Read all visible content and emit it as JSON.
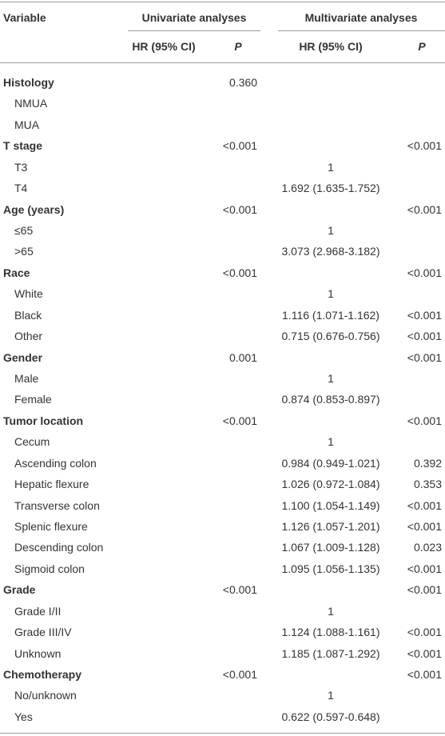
{
  "table": {
    "header": {
      "variable": "Variable",
      "groups": [
        "Univariate analyses",
        "Multivariate analyses"
      ],
      "columns": [
        "HR (95% CI)",
        "P",
        "HR (95% CI)",
        "P"
      ]
    },
    "sections": [
      {
        "row": [
          "Histology",
          null,
          "0.360",
          null,
          null
        ],
        "items": [
          [
            "NMUA",
            null,
            null,
            null,
            null
          ],
          [
            "MUA",
            null,
            null,
            null,
            null
          ]
        ]
      },
      {
        "row": [
          "T stage",
          null,
          "<0.001",
          null,
          "<0.001"
        ],
        "items": [
          [
            "T3",
            null,
            null,
            "1",
            null
          ],
          [
            "T4",
            null,
            null,
            "1.692 (1.635-1.752)",
            null
          ]
        ]
      },
      {
        "row": [
          "Age (years)",
          null,
          "<0.001",
          null,
          "<0.001"
        ],
        "items": [
          [
            "≤65",
            null,
            null,
            "1",
            null
          ],
          [
            ">65",
            null,
            null,
            "3.073 (2.968-3.182)",
            null
          ]
        ]
      },
      {
        "row": [
          "Race",
          null,
          "<0.001",
          null,
          "<0.001"
        ],
        "items": [
          [
            "White",
            null,
            null,
            "1",
            null
          ],
          [
            "Black",
            null,
            null,
            "1.116 (1.071-1.162)",
            "<0.001"
          ],
          [
            "Other",
            null,
            null,
            "0.715 (0.676-0.756)",
            "<0.001"
          ]
        ]
      },
      {
        "row": [
          "Gender",
          null,
          "0.001",
          null,
          "<0.001"
        ],
        "items": [
          [
            "Male",
            null,
            null,
            "1",
            null
          ],
          [
            "Female",
            null,
            null,
            "0.874 (0.853-0.897)",
            null
          ]
        ]
      },
      {
        "row": [
          "Tumor location",
          null,
          "<0.001",
          null,
          "<0.001"
        ],
        "items": [
          [
            "Cecum",
            null,
            null,
            "1",
            null
          ],
          [
            "Ascending colon",
            null,
            null,
            "0.984 (0.949-1.021)",
            "0.392"
          ],
          [
            "Hepatic flexure",
            null,
            null,
            "1.026 (0.972-1.084)",
            "0.353"
          ],
          [
            "Transverse colon",
            null,
            null,
            "1.100 (1.054-1.149)",
            "<0.001"
          ],
          [
            "Splenic flexure",
            null,
            null,
            "1.126 (1.057-1.201)",
            "<0.001"
          ],
          [
            "Descending colon",
            null,
            null,
            "1.067 (1.009-1.128)",
            "0.023"
          ],
          [
            "Sigmoid colon",
            null,
            null,
            "1.095 (1.056-1.135)",
            "<0.001"
          ]
        ]
      },
      {
        "row": [
          "Grade",
          null,
          "<0.001",
          null,
          "<0.001"
        ],
        "items": [
          [
            "Grade I/II",
            null,
            null,
            "1",
            null
          ],
          [
            "Grade III/IV",
            null,
            null,
            "1.124 (1.088-1.161)",
            "<0.001"
          ],
          [
            "Unknown",
            null,
            null,
            "1.185 (1.087-1.292)",
            "<0.001"
          ]
        ]
      },
      {
        "row": [
          "Chemotherapy",
          null,
          "<0.001",
          null,
          "<0.001"
        ],
        "items": [
          [
            "No/unknown",
            null,
            null,
            "1",
            null
          ],
          [
            "Yes",
            null,
            null,
            "0.622 (0.597-0.648)",
            null
          ]
        ]
      }
    ]
  }
}
